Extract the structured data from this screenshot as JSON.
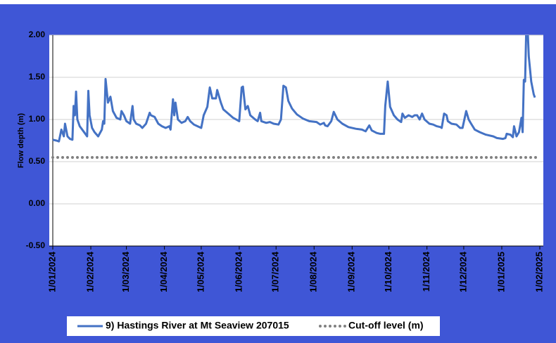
{
  "chart_data": {
    "type": "line",
    "y_label": "Flow depth (m)",
    "xlim": [
      "2024-01-01",
      "2025-02-01"
    ],
    "xticks": [
      {
        "value": "2024-01-01",
        "label": "1/01/2024"
      },
      {
        "value": "2024-02-01",
        "label": "1/02/2024"
      },
      {
        "value": "2024-03-01",
        "label": "1/03/2024"
      },
      {
        "value": "2024-04-01",
        "label": "1/04/2024"
      },
      {
        "value": "2024-05-01",
        "label": "1/05/2024"
      },
      {
        "value": "2024-06-01",
        "label": "1/06/2024"
      },
      {
        "value": "2024-07-01",
        "label": "1/07/2024"
      },
      {
        "value": "2024-08-01",
        "label": "1/08/2024"
      },
      {
        "value": "2024-09-01",
        "label": "1/09/2024"
      },
      {
        "value": "2024-10-01",
        "label": "1/10/2024"
      },
      {
        "value": "2024-11-01",
        "label": "1/11/2024"
      },
      {
        "value": "2024-12-01",
        "label": "1/12/2024"
      },
      {
        "value": "2025-01-01",
        "label": "1/01/2025"
      },
      {
        "value": "2025-02-01",
        "label": "1/02/2025"
      }
    ],
    "ylim": [
      -0.5,
      2.0
    ],
    "yticks": [
      {
        "value": -0.5,
        "label": "-0.50"
      },
      {
        "value": 0,
        "label": "0.00"
      },
      {
        "value": 0.5,
        "label": "0.50"
      },
      {
        "value": 1.0,
        "label": "1.00"
      },
      {
        "value": 1.5,
        "label": "1.50"
      },
      {
        "value": 2.0,
        "label": "2.00"
      }
    ],
    "grid": true,
    "legend": "bottom",
    "series": [
      {
        "name": "9) Hastings River at Mt Seaview 207015",
        "color": "#4472c4",
        "style": "solid",
        "x": [
          "2024-01-01",
          "2024-01-04",
          "2024-01-06",
          "2024-01-08",
          "2024-01-10",
          "2024-01-11",
          "2024-01-13",
          "2024-01-15",
          "2024-01-17",
          "2024-01-18",
          "2024-01-19",
          "2024-01-20",
          "2024-01-21",
          "2024-01-23",
          "2024-01-26",
          "2024-01-29",
          "2024-01-30",
          "2024-01-31",
          "2024-02-02",
          "2024-02-04",
          "2024-02-07",
          "2024-02-10",
          "2024-02-11",
          "2024-02-12",
          "2024-02-13",
          "2024-02-15",
          "2024-02-17",
          "2024-02-19",
          "2024-02-22",
          "2024-02-25",
          "2024-02-26",
          "2024-02-28",
          "2024-03-01",
          "2024-03-04",
          "2024-03-06",
          "2024-03-07",
          "2024-03-09",
          "2024-03-12",
          "2024-03-14",
          "2024-03-17",
          "2024-03-20",
          "2024-03-21",
          "2024-03-24",
          "2024-03-27",
          "2024-03-30",
          "2024-04-02",
          "2024-04-05",
          "2024-04-06",
          "2024-04-08",
          "2024-04-09",
          "2024-04-10",
          "2024-04-12",
          "2024-04-15",
          "2024-04-18",
          "2024-04-20",
          "2024-04-22",
          "2024-04-25",
          "2024-04-28",
          "2024-05-01",
          "2024-05-03",
          "2024-05-06",
          "2024-05-08",
          "2024-05-10",
          "2024-05-13",
          "2024-05-14",
          "2024-05-17",
          "2024-05-19",
          "2024-05-23",
          "2024-05-27",
          "2024-06-01",
          "2024-06-03",
          "2024-06-04",
          "2024-06-06",
          "2024-06-08",
          "2024-06-10",
          "2024-06-14",
          "2024-06-16",
          "2024-06-18",
          "2024-06-19",
          "2024-06-23",
          "2024-06-26",
          "2024-06-29",
          "2024-07-03",
          "2024-07-05",
          "2024-07-07",
          "2024-07-09",
          "2024-07-11",
          "2024-07-14",
          "2024-07-18",
          "2024-07-23",
          "2024-07-28",
          "2024-08-03",
          "2024-08-06",
          "2024-08-09",
          "2024-08-10",
          "2024-08-12",
          "2024-08-15",
          "2024-08-17",
          "2024-08-20",
          "2024-08-24",
          "2024-08-29",
          "2024-09-04",
          "2024-09-09",
          "2024-09-12",
          "2024-09-15",
          "2024-09-17",
          "2024-09-21",
          "2024-09-24",
          "2024-09-27",
          "2024-09-28",
          "2024-09-30",
          "2024-10-02",
          "2024-10-05",
          "2024-10-08",
          "2024-10-11",
          "2024-10-12",
          "2024-10-14",
          "2024-10-17",
          "2024-10-20",
          "2024-10-22",
          "2024-10-24",
          "2024-10-26",
          "2024-10-28",
          "2024-10-30",
          "2024-11-03",
          "2024-11-06",
          "2024-11-09",
          "2024-11-12",
          "2024-11-13",
          "2024-11-15",
          "2024-11-17",
          "2024-11-18",
          "2024-11-21",
          "2024-11-25",
          "2024-11-28",
          "2024-11-30",
          "2024-12-03",
          "2024-12-05",
          "2024-12-07",
          "2024-12-10",
          "2024-12-14",
          "2024-12-19",
          "2024-12-25",
          "2024-12-28",
          "2025-01-02",
          "2025-01-04",
          "2025-01-05",
          "2025-01-08",
          "2025-01-10",
          "2025-01-11",
          "2025-01-13",
          "2025-01-15",
          "2025-01-17",
          "2025-01-18",
          "2025-01-19",
          "2025-01-20",
          "2025-01-21",
          "2025-01-22",
          "2025-01-23",
          "2025-01-25",
          "2025-01-27",
          "2025-01-28"
        ],
        "values": [
          0.76,
          0.75,
          0.74,
          0.88,
          0.8,
          0.95,
          0.8,
          0.77,
          0.76,
          1.16,
          1.05,
          1.33,
          1.0,
          0.92,
          0.86,
          0.8,
          1.34,
          1.05,
          0.9,
          0.85,
          0.8,
          0.88,
          0.98,
          0.95,
          1.48,
          1.2,
          1.27,
          1.1,
          1.02,
          1.0,
          1.1,
          1.05,
          0.98,
          0.95,
          1.16,
          1.0,
          0.95,
          0.93,
          0.9,
          0.95,
          1.08,
          1.05,
          1.03,
          0.95,
          0.92,
          0.9,
          0.92,
          0.88,
          1.24,
          1.05,
          1.2,
          1.0,
          0.96,
          0.98,
          1.03,
          0.98,
          0.94,
          0.92,
          0.9,
          1.05,
          1.15,
          1.38,
          1.25,
          1.25,
          1.35,
          1.2,
          1.12,
          1.07,
          1.02,
          0.98,
          1.38,
          1.39,
          1.12,
          1.16,
          1.05,
          1.0,
          0.98,
          1.08,
          0.98,
          0.96,
          0.97,
          0.95,
          0.94,
          1.0,
          1.4,
          1.38,
          1.22,
          1.13,
          1.06,
          1.01,
          0.98,
          0.97,
          0.94,
          0.96,
          0.93,
          0.92,
          0.98,
          1.09,
          1.0,
          0.95,
          0.91,
          0.89,
          0.88,
          0.86,
          0.93,
          0.87,
          0.84,
          0.83,
          0.83,
          1.16,
          1.45,
          1.15,
          1.05,
          1.0,
          0.97,
          1.07,
          1.02,
          1.05,
          1.03,
          1.05,
          1.05,
          1.0,
          1.07,
          1.0,
          0.95,
          0.94,
          0.92,
          0.91,
          0.9,
          1.07,
          1.05,
          0.98,
          0.95,
          0.94,
          0.9,
          0.9,
          1.1,
          1.0,
          0.95,
          0.88,
          0.85,
          0.82,
          0.8,
          0.78,
          0.77,
          0.78,
          0.83,
          0.82,
          0.79,
          0.92,
          0.8,
          0.85,
          1.02,
          0.85,
          1.47,
          1.45,
          2.1,
          2.1,
          1.75,
          1.45,
          1.3,
          1.26
        ]
      },
      {
        "name": "Cut-off level (m)",
        "color": "#808080",
        "style": "dotted",
        "x": [
          "2024-01-01",
          "2025-02-01"
        ],
        "values": [
          0.55,
          0.55
        ]
      }
    ]
  }
}
